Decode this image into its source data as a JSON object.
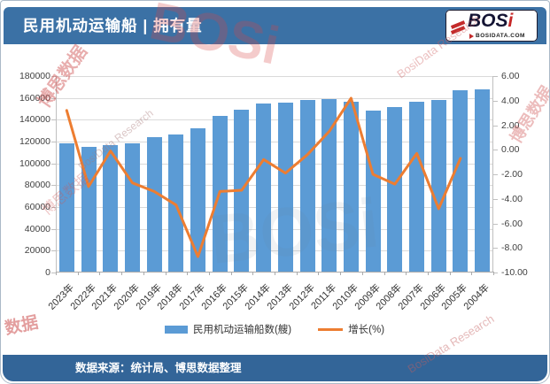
{
  "header": {
    "title": "民用机动运输船 | 拥有量",
    "logo": {
      "text_main": "BOS",
      "text_accent": "i",
      "domain": "BOSIDATA.COM"
    }
  },
  "footer": {
    "source": "数据来源：统计局、博思数据整理"
  },
  "watermarks": [
    "博思数据",
    "BosiData Research",
    "BOSi",
    "博思数据",
    "BosiData Research",
    "数据",
    "BosiData Research",
    "BOSi",
    "博思数据"
  ],
  "colors": {
    "bar": "#5B9BD5",
    "line": "#ED7D31",
    "header_blue": "#3B71A5",
    "footer_blue": "#336598"
  },
  "chart_data": {
    "type": "bar",
    "subtype": "bar+line combo, dual axis",
    "title": "民用机动运输船 | 拥有量",
    "categories": [
      "2023年",
      "2022年",
      "2021年",
      "2020年",
      "2019年",
      "2018年",
      "2017年",
      "2016年",
      "2015年",
      "2014年",
      "2013年",
      "2012年",
      "2011年",
      "2010年",
      "2009年",
      "2008年",
      "2007年",
      "2006年",
      "2005年",
      "2004年"
    ],
    "series": [
      {
        "name": "民用机动运输船数(艘)",
        "type": "bar",
        "axis": "left",
        "color": "#5B9BD5",
        "values": [
          118000,
          114500,
          116300,
          117500,
          123000,
          126000,
          131500,
          143000,
          148500,
          154000,
          155000,
          157500,
          158000,
          155500,
          148000,
          151000,
          156000,
          157500,
          166000,
          167000
        ]
      },
      {
        "name": "增长(%)",
        "type": "line",
        "axis": "right",
        "color": "#ED7D31",
        "values": [
          3.2,
          -3.0,
          -0.1,
          -2.7,
          -3.4,
          -4.5,
          -8.7,
          -3.4,
          -3.3,
          -0.8,
          -1.9,
          -0.4,
          1.5,
          4.2,
          -2.0,
          -2.8,
          -0.3,
          -4.8,
          -0.7,
          null
        ]
      }
    ],
    "left_axis": {
      "min": 0,
      "max": 180000,
      "step": 20000,
      "ticks": [
        "180000",
        "160000",
        "140000",
        "120000",
        "100000",
        "80000",
        "60000",
        "40000",
        "20000",
        "0"
      ]
    },
    "right_axis": {
      "min": -10,
      "max": 6,
      "step": 2,
      "ticks": [
        "6.00",
        "4.00",
        "2.00",
        "0.00",
        "-2.00",
        "-4.00",
        "-6.00",
        "-8.00",
        "-10.00"
      ]
    },
    "grid": true,
    "legend_position": "bottom"
  }
}
